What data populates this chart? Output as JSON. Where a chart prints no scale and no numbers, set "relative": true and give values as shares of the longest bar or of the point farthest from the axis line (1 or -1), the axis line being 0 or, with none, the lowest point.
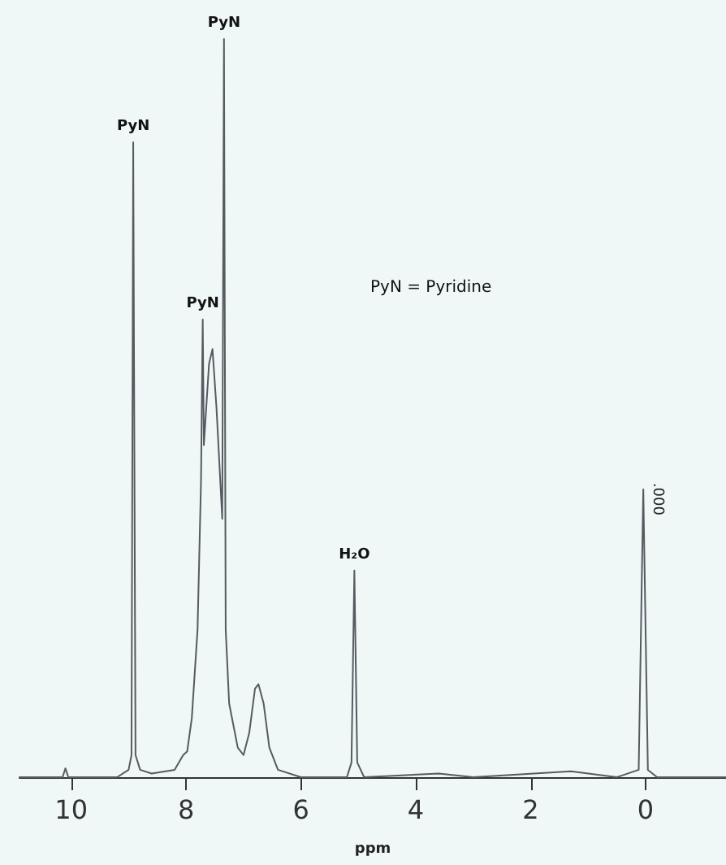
{
  "chart_data": {
    "type": "line",
    "relative": true,
    "xlabel": "ppm",
    "xlim": [
      10.9,
      -1.4
    ],
    "xticks": [
      10,
      8,
      6,
      4,
      2,
      0
    ],
    "grid": false,
    "marker": "none",
    "line_style": "solid",
    "series": [
      {
        "color": "#555b60",
        "x": [
          10.9,
          10.15,
          10.1,
          10.05,
          9.2,
          9.0,
          8.95,
          8.92,
          8.88,
          8.8,
          8.6,
          8.2,
          8.05,
          7.98,
          7.9,
          7.8,
          7.74,
          7.71,
          7.69,
          7.6,
          7.54,
          7.47,
          7.37,
          7.34,
          7.31,
          7.25,
          7.1,
          7.0,
          6.9,
          6.8,
          6.74,
          6.65,
          6.55,
          6.4,
          6.0,
          5.2,
          5.12,
          5.07,
          5.02,
          4.9,
          3.6,
          3.0,
          1.3,
          0.5,
          0.12,
          0.04,
          -0.04,
          -0.2,
          -1.4
        ],
        "values": [
          0,
          0,
          0.012,
          0,
          0,
          0.01,
          0.03,
          0.86,
          0.03,
          0.01,
          0.005,
          0.01,
          0.03,
          0.035,
          0.08,
          0.2,
          0.4,
          0.62,
          0.45,
          0.56,
          0.58,
          0.5,
          0.35,
          1.0,
          0.2,
          0.1,
          0.04,
          0.03,
          0.06,
          0.12,
          0.126,
          0.1,
          0.04,
          0.01,
          0,
          0,
          0.02,
          0.28,
          0.02,
          0,
          0.005,
          0,
          0.008,
          0,
          0.01,
          0.39,
          0.01,
          0,
          0
        ]
      }
    ],
    "annotations": [
      {
        "text": "PyN",
        "x": 8.92,
        "y": 0.86
      },
      {
        "text": "PyN",
        "x": 7.34,
        "y": 1.0
      },
      {
        "text": "PyN",
        "x": 7.71,
        "y": 0.62
      },
      {
        "text": "H₂O",
        "x": 5.07,
        "y": 0.28
      },
      {
        "text": ".000",
        "x": 0.04,
        "y": 0.39
      },
      "PyN = Pyridine"
    ]
  }
}
